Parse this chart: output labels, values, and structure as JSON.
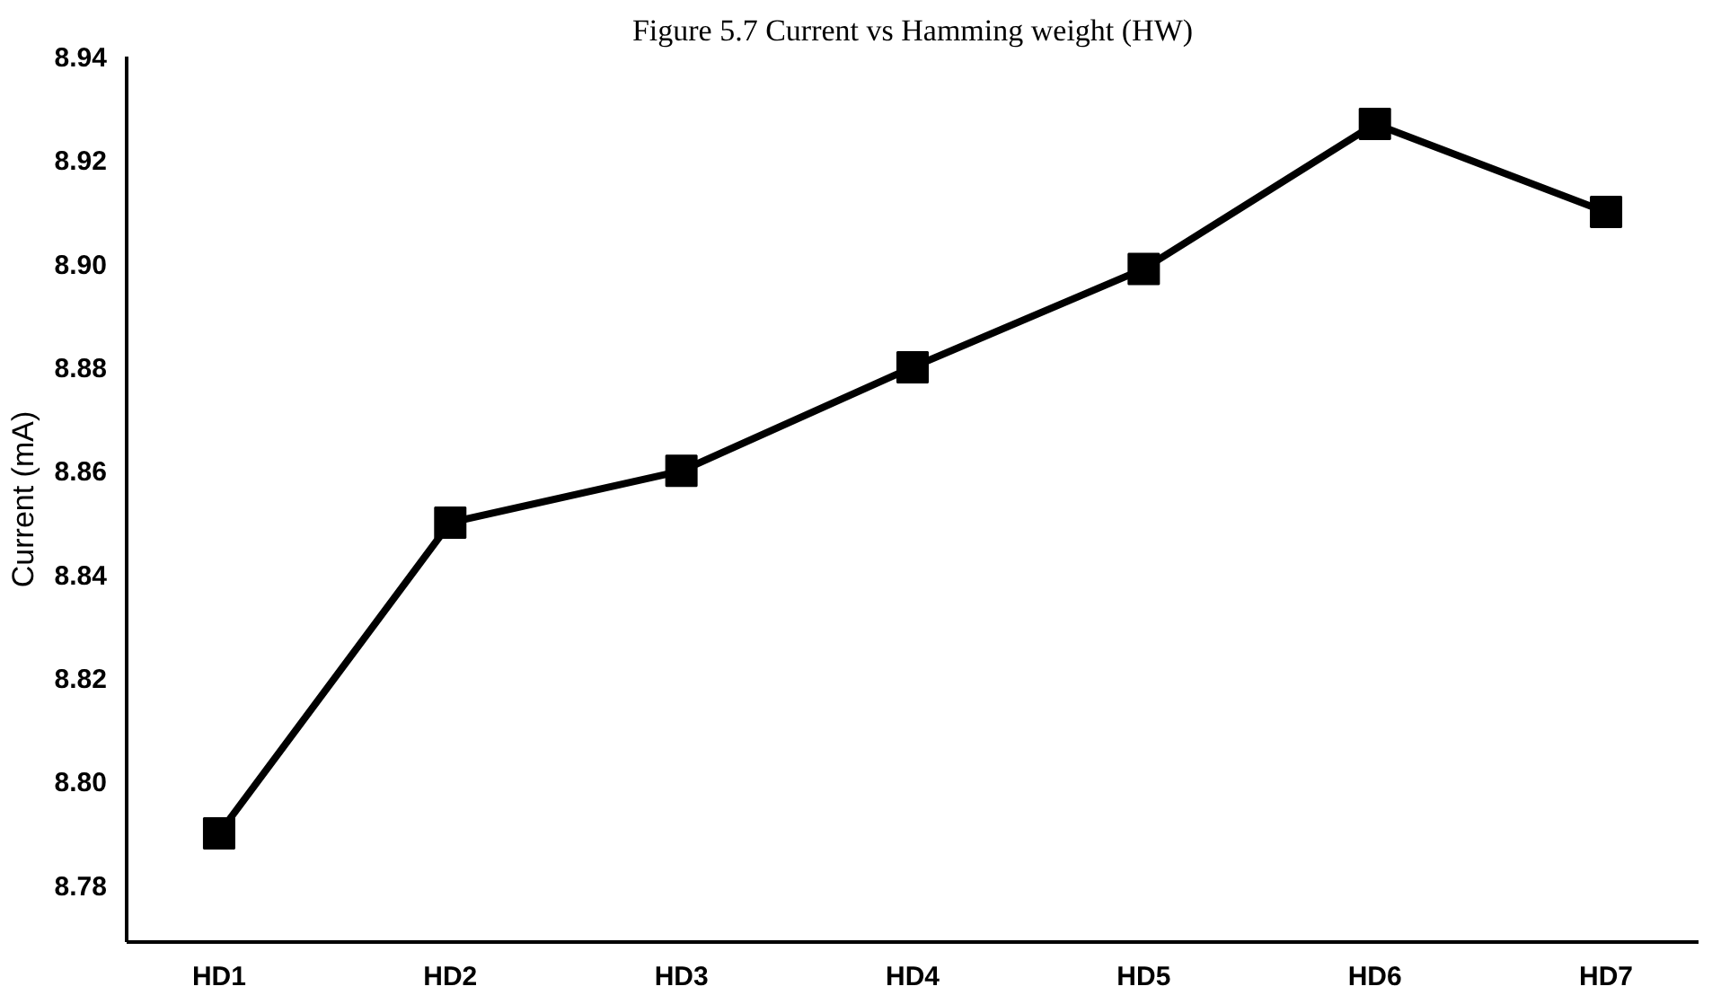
{
  "chart_data": {
    "type": "line",
    "title": "Figure 5.7 Current vs Hamming weight (HW)",
    "ylabel": "Current (mA)",
    "categories": [
      "HD1",
      "HD2",
      "HD3",
      "HD4",
      "HD5",
      "HD6",
      "HD7"
    ],
    "series": [
      {
        "color": "#000000",
        "values": [
          8.79,
          8.85,
          8.86,
          8.88,
          8.899,
          8.927,
          8.91
        ]
      }
    ],
    "ylim": [
      8.769,
      8.94
    ],
    "yticks": [
      8.78,
      {
        "value": 8.8,
        "label": "8.80"
      },
      8.82,
      8.84,
      8.86,
      8.88,
      {
        "value": 8.9,
        "label": "8.90"
      },
      8.92,
      8.94
    ],
    "grid": false,
    "marker": "square",
    "line_style": "solid"
  }
}
